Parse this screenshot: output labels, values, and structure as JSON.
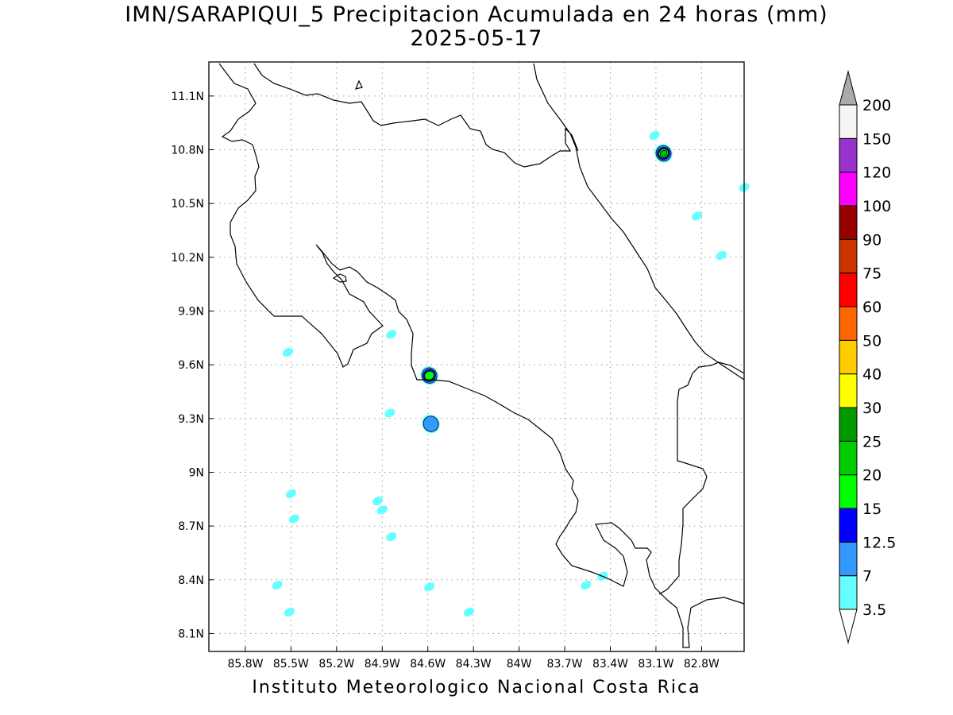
{
  "title": {
    "line1": "IMN/SARAPIQUI_5 Precipitacion Acumulada en 24 horas (mm)",
    "line2": "2025-05-17"
  },
  "footer": "Instituto Meteorologico Nacional Costa Rica",
  "map": {
    "lon_range": [
      -86.0,
      -82.5
    ],
    "lat_range": [
      8.0,
      11.2
    ],
    "lon_ticks": [
      {
        "value": -85.8,
        "label": "85.8W"
      },
      {
        "value": -85.5,
        "label": "85.5W"
      },
      {
        "value": -85.2,
        "label": "85.2W"
      },
      {
        "value": -84.9,
        "label": "84.9W"
      },
      {
        "value": -84.6,
        "label": "84.6W"
      },
      {
        "value": -84.3,
        "label": "84.3W"
      },
      {
        "value": -84.0,
        "label": "84W"
      },
      {
        "value": -83.7,
        "label": "83.7W"
      },
      {
        "value": -83.4,
        "label": "83.4W"
      },
      {
        "value": -83.1,
        "label": "83.1W"
      },
      {
        "value": -82.8,
        "label": "82.8W"
      }
    ],
    "lat_ticks": [
      {
        "value": 11.1,
        "label": "11.1N"
      },
      {
        "value": 10.8,
        "label": "10.8N"
      },
      {
        "value": 10.5,
        "label": "10.5N"
      },
      {
        "value": 10.2,
        "label": "10.2N"
      },
      {
        "value": 9.9,
        "label": "9.9N"
      },
      {
        "value": 9.6,
        "label": "9.6N"
      },
      {
        "value": 9.3,
        "label": "9.3N"
      },
      {
        "value": 9.0,
        "label": "9N"
      },
      {
        "value": 8.7,
        "label": "8.7N"
      },
      {
        "value": 8.4,
        "label": "8.4N"
      },
      {
        "value": 8.1,
        "label": "8.1N"
      }
    ],
    "grid": "dotted",
    "colorbar": [
      {
        "label": "3.5",
        "color": "#66ffff"
      },
      {
        "label": "7",
        "color": "#3399ff"
      },
      {
        "label": "12.5",
        "color": "#0000ff"
      },
      {
        "label": "15",
        "color": "#00ff00"
      },
      {
        "label": "20",
        "color": "#00cc00"
      },
      {
        "label": "25",
        "color": "#009900"
      },
      {
        "label": "30",
        "color": "#ffff00"
      },
      {
        "label": "40",
        "color": "#ffcc00"
      },
      {
        "label": "50",
        "color": "#ff6600"
      },
      {
        "label": "60",
        "color": "#ff0000"
      },
      {
        "label": "75",
        "color": "#cc3300"
      },
      {
        "label": "90",
        "color": "#990000"
      },
      {
        "label": "100",
        "color": "#ff00ff"
      },
      {
        "label": "120",
        "color": "#9933cc"
      },
      {
        "label": "150",
        "color": "#f5f5f5"
      },
      {
        "label": "200",
        "color": "#aaaaaa"
      }
    ],
    "rain_cells": [
      {
        "lon": -84.59,
        "lat": 9.54,
        "max_mm": 15
      },
      {
        "lon": -84.58,
        "lat": 9.27,
        "max_mm": 7
      },
      {
        "lon": -83.05,
        "lat": 10.78,
        "max_mm": 20
      },
      {
        "lon": -84.84,
        "lat": 9.77,
        "max_mm": 3.5
      },
      {
        "lon": -84.85,
        "lat": 9.33,
        "max_mm": 3.5
      },
      {
        "lon": -82.52,
        "lat": 10.59,
        "max_mm": 3.5
      },
      {
        "lon": -85.5,
        "lat": 8.88,
        "max_mm": 3.5
      },
      {
        "lon": -84.93,
        "lat": 8.84,
        "max_mm": 3.5
      },
      {
        "lon": -85.48,
        "lat": 8.74,
        "max_mm": 3.5
      },
      {
        "lon": -84.9,
        "lat": 8.79,
        "max_mm": 3.5
      },
      {
        "lon": -84.84,
        "lat": 8.64,
        "max_mm": 3.5
      },
      {
        "lon": -84.59,
        "lat": 8.36,
        "max_mm": 3.5
      },
      {
        "lon": -83.45,
        "lat": 8.42,
        "max_mm": 3.5
      },
      {
        "lon": -83.56,
        "lat": 8.37,
        "max_mm": 3.5
      },
      {
        "lon": -84.33,
        "lat": 8.22,
        "max_mm": 3.5
      },
      {
        "lon": -85.59,
        "lat": 8.37,
        "max_mm": 3.5
      },
      {
        "lon": -85.51,
        "lat": 8.22,
        "max_mm": 3.5
      },
      {
        "lon": -82.83,
        "lat": 10.43,
        "max_mm": 3.5
      },
      {
        "lon": -82.67,
        "lat": 10.21,
        "max_mm": 3.5
      },
      {
        "lon": -85.52,
        "lat": 9.67,
        "max_mm": 3.5
      },
      {
        "lon": -83.11,
        "lat": 10.88,
        "max_mm": 3.5
      }
    ]
  }
}
